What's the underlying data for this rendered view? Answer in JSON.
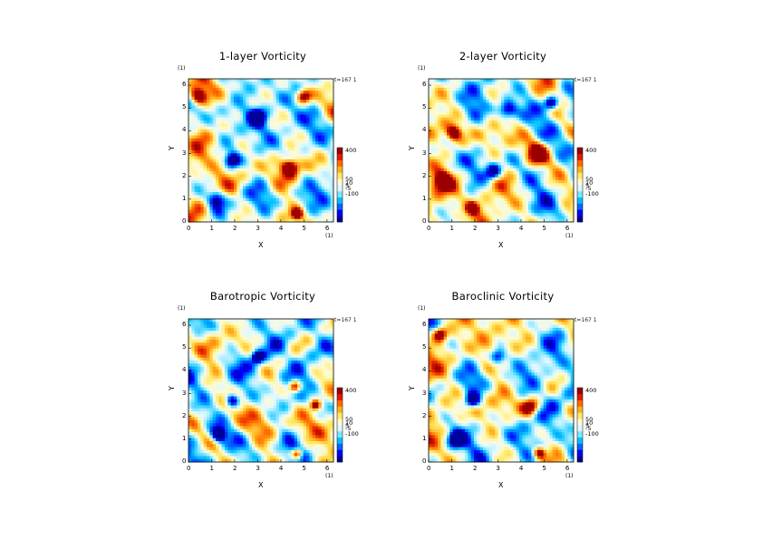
{
  "colors": {
    "scale": [
      "#00009b",
      "#0000ff",
      "#0066ff",
      "#00c0ff",
      "#7fe3ff",
      "#e0f8ff",
      "#fffbd0",
      "#ffe966",
      "#ffb020",
      "#ff6a00",
      "#e01c00",
      "#9b0000"
    ]
  },
  "chart_data": [
    {
      "type": "heatmap",
      "title": "1-layer Vorticity",
      "xlabel": "X",
      "ylabel": "Y",
      "xunit": "(1)",
      "yunit": "(1)",
      "time_label": "t=167 1",
      "xlim": [
        0,
        6.28
      ],
      "ylim": [
        0,
        6.28
      ],
      "xticks": [
        "0",
        "1",
        "2",
        "3",
        "4",
        "5",
        "6"
      ],
      "yticks": [
        "0",
        "1",
        "2",
        "3",
        "4",
        "5",
        "6"
      ],
      "colorbar_labels": [
        "400",
        "50",
        "10",
        "5",
        "-5",
        "-100"
      ],
      "features": [
        {
          "x": 1.9,
          "y": 2.7,
          "r": 0.32,
          "sign": -1
        },
        {
          "x": 4.7,
          "y": 0.35,
          "r": 0.25,
          "sign": 1
        },
        {
          "x": 0.4,
          "y": 5.5,
          "r": 0.35,
          "sign": 1
        },
        {
          "x": 4.4,
          "y": 2.4,
          "r": 0.35,
          "sign": 1
        },
        {
          "x": 3.0,
          "y": 4.6,
          "r": 0.35,
          "sign": -1
        },
        {
          "x": 5.0,
          "y": 5.5,
          "r": 0.3,
          "sign": 1
        },
        {
          "x": 1.2,
          "y": 1.0,
          "r": 0.4,
          "sign": -1
        }
      ]
    },
    {
      "type": "heatmap",
      "title": "2-layer Vorticity",
      "xlabel": "X",
      "ylabel": "Y",
      "xunit": "(1)",
      "yunit": "(1)",
      "time_label": "t=167 1",
      "xlim": [
        0,
        6.28
      ],
      "ylim": [
        0,
        6.28
      ],
      "xticks": [
        "0",
        "1",
        "2",
        "3",
        "4",
        "5",
        "6"
      ],
      "yticks": [
        "0",
        "1",
        "2",
        "3",
        "4",
        "5",
        "6"
      ],
      "colorbar_labels": [
        "400",
        "50",
        "10",
        "5",
        "-5",
        "-100"
      ],
      "features": [
        {
          "x": 1.1,
          "y": 3.9,
          "r": 0.3,
          "sign": 1
        },
        {
          "x": 5.3,
          "y": 5.2,
          "r": 0.3,
          "sign": -1
        },
        {
          "x": 1.9,
          "y": 0.6,
          "r": 0.25,
          "sign": 1
        },
        {
          "x": 4.7,
          "y": 3.0,
          "r": 0.45,
          "sign": 1
        },
        {
          "x": 3.4,
          "y": 4.9,
          "r": 0.4,
          "sign": -1
        },
        {
          "x": 0.6,
          "y": 1.8,
          "r": 0.4,
          "sign": 1
        },
        {
          "x": 2.8,
          "y": 2.2,
          "r": 0.35,
          "sign": -1
        }
      ]
    },
    {
      "type": "heatmap",
      "title": "Barotropic Vorticity",
      "xlabel": "X",
      "ylabel": "Y",
      "xunit": "(1)",
      "yunit": "(1)",
      "time_label": "t=167 1",
      "xlim": [
        0,
        6.28
      ],
      "ylim": [
        0,
        6.28
      ],
      "xticks": [
        "0",
        "1",
        "2",
        "3",
        "4",
        "5",
        "6"
      ],
      "yticks": [
        "0",
        "1",
        "2",
        "3",
        "4",
        "5",
        "6"
      ],
      "colorbar_labels": [
        "400",
        "50",
        "10",
        "5",
        "-5",
        "-100"
      ],
      "features": [
        {
          "x": 1.9,
          "y": 2.7,
          "r": 0.3,
          "sign": -1
        },
        {
          "x": 4.7,
          "y": 0.35,
          "r": 0.22,
          "sign": 1
        },
        {
          "x": 4.6,
          "y": 3.3,
          "r": 0.25,
          "sign": 1
        },
        {
          "x": 3.0,
          "y": 4.6,
          "r": 0.25,
          "sign": -1
        },
        {
          "x": 1.3,
          "y": 1.2,
          "r": 0.3,
          "sign": -1
        },
        {
          "x": 5.5,
          "y": 2.5,
          "r": 0.2,
          "sign": 1
        }
      ]
    },
    {
      "type": "heatmap",
      "title": "Baroclinic Vorticity",
      "xlabel": "X",
      "ylabel": "Y",
      "xunit": "(1)",
      "yunit": "(1)",
      "time_label": "t=167 1",
      "xlim": [
        0,
        6.28
      ],
      "ylim": [
        0,
        6.28
      ],
      "xticks": [
        "0",
        "1",
        "2",
        "3",
        "4",
        "5",
        "6"
      ],
      "yticks": [
        "0",
        "1",
        "2",
        "3",
        "4",
        "5",
        "6"
      ],
      "colorbar_labels": [
        "400",
        "50",
        "10",
        "5",
        "-5",
        "-100"
      ],
      "features": [
        {
          "x": 1.9,
          "y": 2.7,
          "r": 0.3,
          "sign": -1
        },
        {
          "x": 4.8,
          "y": 0.4,
          "r": 0.25,
          "sign": 1
        },
        {
          "x": 0.5,
          "y": 5.6,
          "r": 0.3,
          "sign": 1
        },
        {
          "x": 4.4,
          "y": 2.4,
          "r": 0.35,
          "sign": 1
        },
        {
          "x": 3.0,
          "y": 4.6,
          "r": 0.35,
          "sign": -1
        },
        {
          "x": 1.2,
          "y": 1.0,
          "r": 0.35,
          "sign": -1
        }
      ]
    }
  ]
}
